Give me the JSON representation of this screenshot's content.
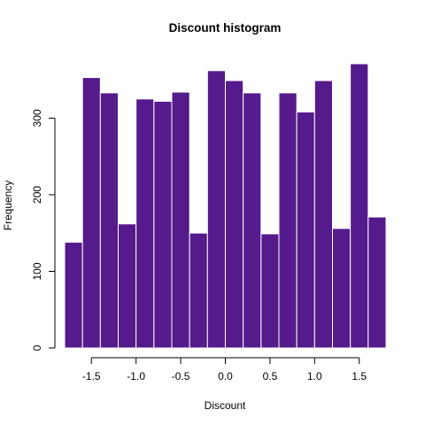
{
  "chart_data": {
    "type": "bar",
    "title": "Discount histogram",
    "xlabel": "Discount",
    "ylabel": "Frequency",
    "bar_color": "#551a8b",
    "bar_border_color": "#ffffff",
    "bin_edges": [
      -1.8,
      -1.6,
      -1.4,
      -1.2,
      -1.0,
      -0.8,
      -0.6,
      -0.4,
      -0.2,
      0.0,
      0.2,
      0.4,
      0.6,
      0.8,
      1.0,
      1.2,
      1.4,
      1.6,
      1.8
    ],
    "values": [
      138,
      353,
      333,
      162,
      325,
      322,
      334,
      150,
      362,
      349,
      333,
      149,
      333,
      308,
      349,
      156,
      371,
      171
    ],
    "xlim": [
      -1.8,
      1.8
    ],
    "ylim": [
      0,
      371
    ],
    "x_ticks": [
      -1.5,
      -1.0,
      -0.5,
      0.0,
      0.5,
      1.0,
      1.5
    ],
    "x_tick_labels": [
      "-1.5",
      "-1.0",
      "-0.5",
      "0.0",
      "0.5",
      "1.0",
      "1.5"
    ],
    "y_ticks": [
      0,
      100,
      200,
      300
    ],
    "y_tick_labels": [
      "0",
      "100",
      "200",
      "300"
    ],
    "grid": false,
    "legend": "none"
  }
}
